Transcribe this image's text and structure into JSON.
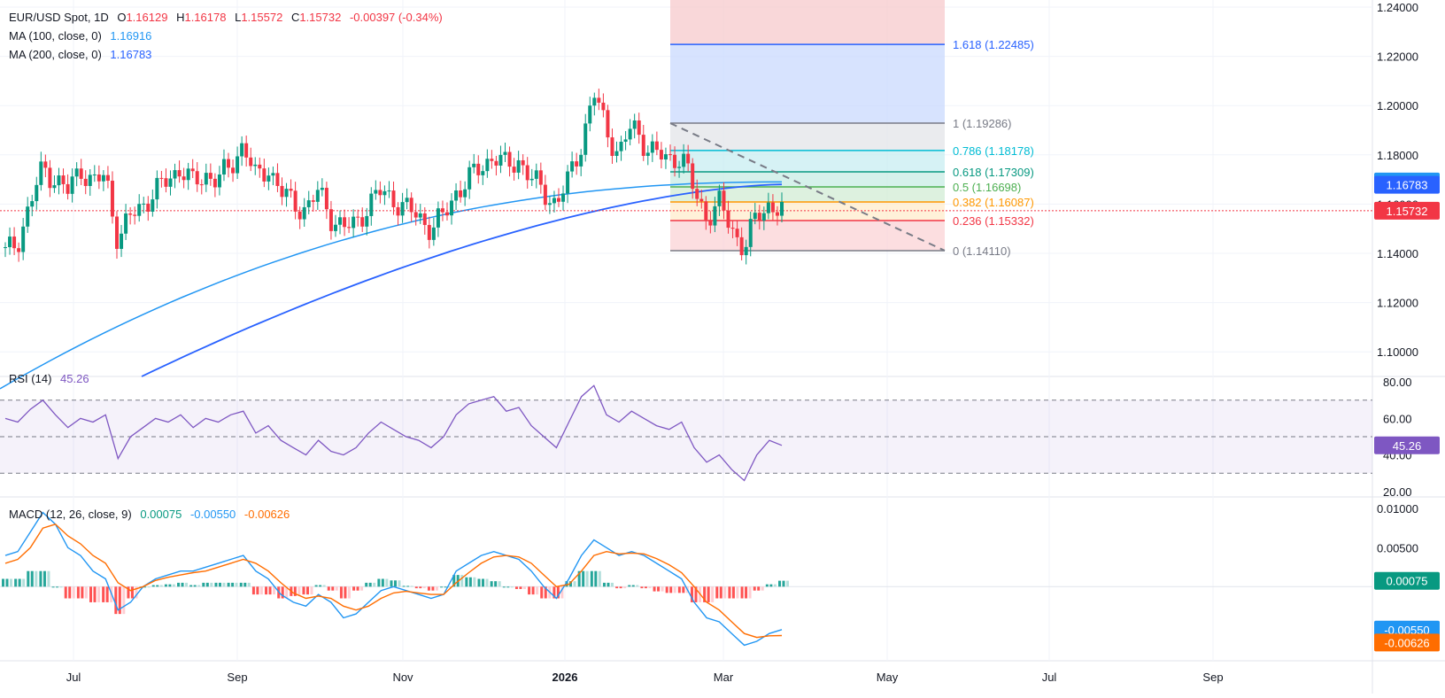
{
  "header": {
    "symbol": "EUR/USD Spot, 1D",
    "open_prefix": "O",
    "open": "1.16129",
    "high_prefix": "H",
    "high": "1.16178",
    "low_prefix": "L",
    "low": "1.15572",
    "close_prefix": "C",
    "close": "1.15732",
    "change": "-0.00397 (-0.34%)",
    "ma100_label": "MA (100, close, 0)",
    "ma100_value": "1.16916",
    "ma200_label": "MA (200, close, 0)",
    "ma200_value": "1.16783"
  },
  "rsi_legend": {
    "label": "RSI (14)",
    "value": "45.26"
  },
  "macd_legend": {
    "label": "MACD (12, 26, close, 9)",
    "hist": "0.00075",
    "macd": "-0.00550",
    "signal": "-0.00626"
  },
  "colors": {
    "up": "#089981",
    "down": "#f23645",
    "ma100": "#2196f3",
    "ma200": "#2962ff",
    "rsi": "#7e57c2",
    "macd": "#2196f3",
    "signal": "#ff6d00"
  },
  "chart_data": [
    {
      "type": "candlestick",
      "title": "EUR/USD Spot, 1D",
      "x_tick_labels": [
        "Jul",
        "Sep",
        "Nov",
        "2026",
        "Mar",
        "May",
        "Jul",
        "Sep"
      ],
      "y_tick_labels": [
        "1.24000",
        "1.22000",
        "1.20000",
        "1.18000",
        "1.16000",
        "1.14000",
        "1.12000",
        "1.10000"
      ],
      "ylim": [
        1.09,
        1.24
      ],
      "grid": true,
      "price_path": [
        1.14,
        1.145,
        1.16,
        1.175,
        1.17,
        1.165,
        1.175,
        1.168,
        1.172,
        1.145,
        1.155,
        1.16,
        1.165,
        1.17,
        1.175,
        1.168,
        1.172,
        1.17,
        1.175,
        1.185,
        1.17,
        1.175,
        1.165,
        1.16,
        1.158,
        1.165,
        1.155,
        1.15,
        1.152,
        1.16,
        1.165,
        1.162,
        1.158,
        1.155,
        1.15,
        1.155,
        1.165,
        1.17,
        1.175,
        1.18,
        1.175,
        1.178,
        1.17,
        1.165,
        1.16,
        1.17,
        1.185,
        1.205,
        1.19,
        1.18,
        1.192,
        1.185,
        1.18,
        1.178,
        1.18,
        1.165,
        1.155,
        1.16,
        1.15,
        1.142,
        1.155,
        1.16,
        1.157
      ],
      "ma_series": [
        {
          "name": "MA (100, close, 0)",
          "start": 1.085,
          "end": 1.169
        },
        {
          "name": "MA (200, close, 0)",
          "start": 1.09,
          "end": 1.168
        }
      ],
      "last_price": "1.15732",
      "ma100_price_tag": "1.16916",
      "ma200_price_tag": "1.16783",
      "fib_levels": [
        {
          "label": "1.618 (1.22485)",
          "value": 1.22485,
          "color": "#2962ff"
        },
        {
          "label": "1 (1.19286)",
          "value": 1.19286,
          "color": "#787b86"
        },
        {
          "label": "0.786 (1.18178)",
          "value": 1.18178,
          "color": "#00bcd4"
        },
        {
          "label": "0.618 (1.17309)",
          "value": 1.17309,
          "color": "#089981"
        },
        {
          "label": "0.5 (1.16698)",
          "value": 1.16698,
          "color": "#4caf50"
        },
        {
          "label": "0.382 (1.16087)",
          "value": 1.16087,
          "color": "#ff9800"
        },
        {
          "label": "0.236 (1.15332)",
          "value": 1.15332,
          "color": "#f23645"
        },
        {
          "label": "0 (1.14110)",
          "value": 1.1411,
          "color": "#787b86"
        }
      ]
    },
    {
      "type": "line",
      "title": "RSI (14)",
      "y_tick_labels": [
        "80.00",
        "60.00",
        "40.00",
        "20.00"
      ],
      "ylim": [
        17,
        83
      ],
      "bands": [
        70,
        50,
        30
      ],
      "values": [
        60,
        58,
        65,
        70,
        62,
        55,
        60,
        58,
        62,
        38,
        50,
        55,
        60,
        58,
        62,
        55,
        60,
        58,
        62,
        64,
        52,
        56,
        48,
        44,
        40,
        48,
        42,
        40,
        44,
        52,
        58,
        54,
        50,
        48,
        44,
        50,
        62,
        68,
        70,
        72,
        64,
        66,
        56,
        50,
        44,
        58,
        72,
        78,
        62,
        58,
        64,
        60,
        56,
        54,
        58,
        44,
        36,
        40,
        32,
        26,
        40,
        48,
        45.26
      ],
      "last_value": "45.26"
    },
    {
      "type": "line",
      "title": "MACD (12, 26, close, 9)",
      "y_tick_labels": [
        "0.01000",
        "0.00500",
        "-0.00500"
      ],
      "ylim": [
        -0.0095,
        0.0115
      ],
      "macd": [
        0.004,
        0.0045,
        0.007,
        0.0095,
        0.008,
        0.005,
        0.004,
        0.002,
        0.001,
        -0.003,
        -0.002,
        0.0,
        0.001,
        0.0015,
        0.002,
        0.002,
        0.0025,
        0.003,
        0.0035,
        0.004,
        0.002,
        0.001,
        -0.001,
        -0.002,
        -0.0025,
        -0.001,
        -0.002,
        -0.004,
        -0.0035,
        -0.002,
        -0.0005,
        0.0,
        -0.0005,
        -0.001,
        -0.0015,
        -0.001,
        0.002,
        0.003,
        0.004,
        0.0045,
        0.004,
        0.0035,
        0.002,
        0.0,
        -0.0015,
        0.001,
        0.004,
        0.006,
        0.005,
        0.004,
        0.0045,
        0.004,
        0.003,
        0.002,
        0.001,
        -0.002,
        -0.004,
        -0.0045,
        -0.006,
        -0.0075,
        -0.007,
        -0.006,
        -0.0055
      ],
      "signal": [
        0.003,
        0.0035,
        0.005,
        0.0075,
        0.008,
        0.0065,
        0.0055,
        0.004,
        0.003,
        0.0005,
        -0.0005,
        0.0,
        0.0008,
        0.0012,
        0.0015,
        0.0018,
        0.002,
        0.0025,
        0.003,
        0.0035,
        0.003,
        0.002,
        0.0005,
        -0.0008,
        -0.0015,
        -0.0012,
        -0.0015,
        -0.0025,
        -0.003,
        -0.0025,
        -0.0015,
        -0.0008,
        -0.0006,
        -0.0008,
        -0.001,
        -0.001,
        0.0005,
        0.0018,
        0.003,
        0.0038,
        0.004,
        0.0038,
        0.003,
        0.0015,
        0.0,
        0.0003,
        0.002,
        0.004,
        0.0045,
        0.0042,
        0.0043,
        0.0042,
        0.0036,
        0.0028,
        0.0018,
        0.0,
        -0.002,
        -0.003,
        -0.0045,
        -0.006,
        -0.0065,
        -0.0063,
        -0.00626
      ],
      "hist_last": "0.00075",
      "macd_last": "-0.00550",
      "signal_last": "-0.00626"
    }
  ]
}
